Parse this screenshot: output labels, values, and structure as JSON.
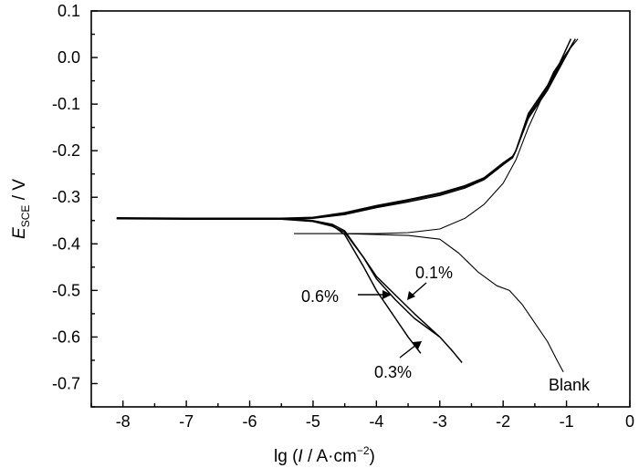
{
  "chart_data": {
    "type": "line",
    "xlabel": "lg (I / A·cm⁻²)",
    "ylabel": "E_SCE / V",
    "xlim": [
      -8.5,
      0
    ],
    "ylim": [
      -0.75,
      0.1
    ],
    "x_ticks": [
      "-8",
      "-7",
      "-6",
      "-5",
      "-4",
      "-3",
      "-2",
      "-1",
      "0"
    ],
    "y_ticks": [
      "0.1",
      "0.0",
      "-0.1",
      "-0.2",
      "-0.3",
      "-0.4",
      "-0.5",
      "-0.6",
      "-0.7"
    ],
    "grid": false,
    "series": [
      {
        "name": "0.1%",
        "anodic": [
          [
            -8.1,
            -0.344
          ],
          [
            -7.0,
            -0.345
          ],
          [
            -6.0,
            -0.345
          ],
          [
            -5.5,
            -0.345
          ],
          [
            -5.0,
            -0.343
          ],
          [
            -4.5,
            -0.333
          ],
          [
            -4.0,
            -0.318
          ],
          [
            -3.5,
            -0.305
          ],
          [
            -3.0,
            -0.291
          ],
          [
            -2.6,
            -0.275
          ],
          [
            -2.3,
            -0.258
          ],
          [
            -2.0,
            -0.226
          ],
          [
            -1.85,
            -0.212
          ],
          [
            -1.8,
            -0.2
          ],
          [
            -1.6,
            -0.12
          ],
          [
            -1.3,
            -0.06
          ],
          [
            -1.1,
            -0.01
          ],
          [
            -0.93,
            0.04
          ]
        ],
        "cathodic": [
          [
            -5.5,
            -0.345
          ],
          [
            -5.0,
            -0.35
          ],
          [
            -4.7,
            -0.358
          ],
          [
            -4.5,
            -0.372
          ],
          [
            -4.2,
            -0.43
          ],
          [
            -4.0,
            -0.475
          ],
          [
            -3.7,
            -0.52
          ],
          [
            -3.4,
            -0.56
          ],
          [
            -3.0,
            -0.6
          ]
        ]
      },
      {
        "name": "0.3%",
        "anodic": [
          [
            -8.1,
            -0.345
          ],
          [
            -7.0,
            -0.346
          ],
          [
            -6.0,
            -0.346
          ],
          [
            -5.5,
            -0.346
          ],
          [
            -5.0,
            -0.344
          ],
          [
            -4.5,
            -0.335
          ],
          [
            -4.0,
            -0.32
          ],
          [
            -3.5,
            -0.307
          ],
          [
            -3.0,
            -0.293
          ],
          [
            -2.6,
            -0.277
          ],
          [
            -2.3,
            -0.26
          ],
          [
            -2.0,
            -0.228
          ],
          [
            -1.85,
            -0.214
          ],
          [
            -1.8,
            -0.2
          ],
          [
            -1.6,
            -0.125
          ],
          [
            -1.3,
            -0.065
          ],
          [
            -1.1,
            -0.015
          ],
          [
            -0.86,
            0.04
          ]
        ],
        "cathodic": [
          [
            -5.5,
            -0.346
          ],
          [
            -5.0,
            -0.351
          ],
          [
            -4.7,
            -0.36
          ],
          [
            -4.5,
            -0.38
          ],
          [
            -4.2,
            -0.45
          ],
          [
            -4.0,
            -0.5
          ],
          [
            -3.7,
            -0.56
          ],
          [
            -3.5,
            -0.6
          ],
          [
            -3.3,
            -0.635
          ]
        ]
      },
      {
        "name": "0.6%",
        "anodic": [
          [
            -8.1,
            -0.346
          ],
          [
            -7.0,
            -0.347
          ],
          [
            -6.0,
            -0.347
          ],
          [
            -5.5,
            -0.347
          ],
          [
            -5.0,
            -0.345
          ],
          [
            -4.5,
            -0.337
          ],
          [
            -4.0,
            -0.322
          ],
          [
            -3.5,
            -0.31
          ],
          [
            -3.0,
            -0.296
          ],
          [
            -2.6,
            -0.28
          ],
          [
            -2.3,
            -0.262
          ],
          [
            -2.0,
            -0.23
          ],
          [
            -1.85,
            -0.215
          ],
          [
            -1.8,
            -0.2
          ],
          [
            -1.6,
            -0.13
          ],
          [
            -1.3,
            -0.07
          ],
          [
            -1.1,
            -0.02
          ],
          [
            -0.9,
            0.03
          ]
        ],
        "cathodic": [
          [
            -5.5,
            -0.347
          ],
          [
            -5.0,
            -0.352
          ],
          [
            -4.7,
            -0.362
          ],
          [
            -4.5,
            -0.375
          ],
          [
            -4.2,
            -0.43
          ],
          [
            -4.0,
            -0.47
          ],
          [
            -3.7,
            -0.51
          ],
          [
            -3.4,
            -0.55
          ],
          [
            -3.0,
            -0.6
          ],
          [
            -2.8,
            -0.63
          ],
          [
            -2.65,
            -0.655
          ]
        ]
      },
      {
        "name": "Blank",
        "anodic": [
          [
            -5.3,
            -0.378
          ],
          [
            -4.5,
            -0.378
          ],
          [
            -4.0,
            -0.378
          ],
          [
            -3.5,
            -0.376
          ],
          [
            -3.0,
            -0.368
          ],
          [
            -2.6,
            -0.345
          ],
          [
            -2.3,
            -0.315
          ],
          [
            -2.0,
            -0.27
          ],
          [
            -1.8,
            -0.22
          ],
          [
            -1.6,
            -0.15
          ],
          [
            -1.4,
            -0.09
          ],
          [
            -1.2,
            -0.03
          ],
          [
            -1.0,
            0.01
          ],
          [
            -0.82,
            0.04
          ]
        ],
        "cathodic": [
          [
            -4.5,
            -0.378
          ],
          [
            -4.0,
            -0.38
          ],
          [
            -3.5,
            -0.382
          ],
          [
            -3.0,
            -0.39
          ],
          [
            -2.7,
            -0.42
          ],
          [
            -2.4,
            -0.46
          ],
          [
            -2.1,
            -0.49
          ],
          [
            -1.9,
            -0.5
          ],
          [
            -1.7,
            -0.53
          ],
          [
            -1.5,
            -0.57
          ],
          [
            -1.3,
            -0.61
          ],
          [
            -1.15,
            -0.65
          ],
          [
            -1.05,
            -0.675
          ]
        ]
      }
    ],
    "annotations": [
      "0.1%",
      "0.6%",
      "0.3%",
      "Blank"
    ]
  },
  "labels": {
    "x_title": "lg (",
    "x_title_italic": "I",
    "x_title_rest": " / A·cm",
    "x_title_sup": "−2",
    "x_title_end": ")",
    "y_title_main": "E",
    "y_title_sub": "SCE",
    "y_title_rest": " / V",
    "a01": "0.1%",
    "a06": "0.6%",
    "a03": "0.3%",
    "blank": "Blank"
  }
}
